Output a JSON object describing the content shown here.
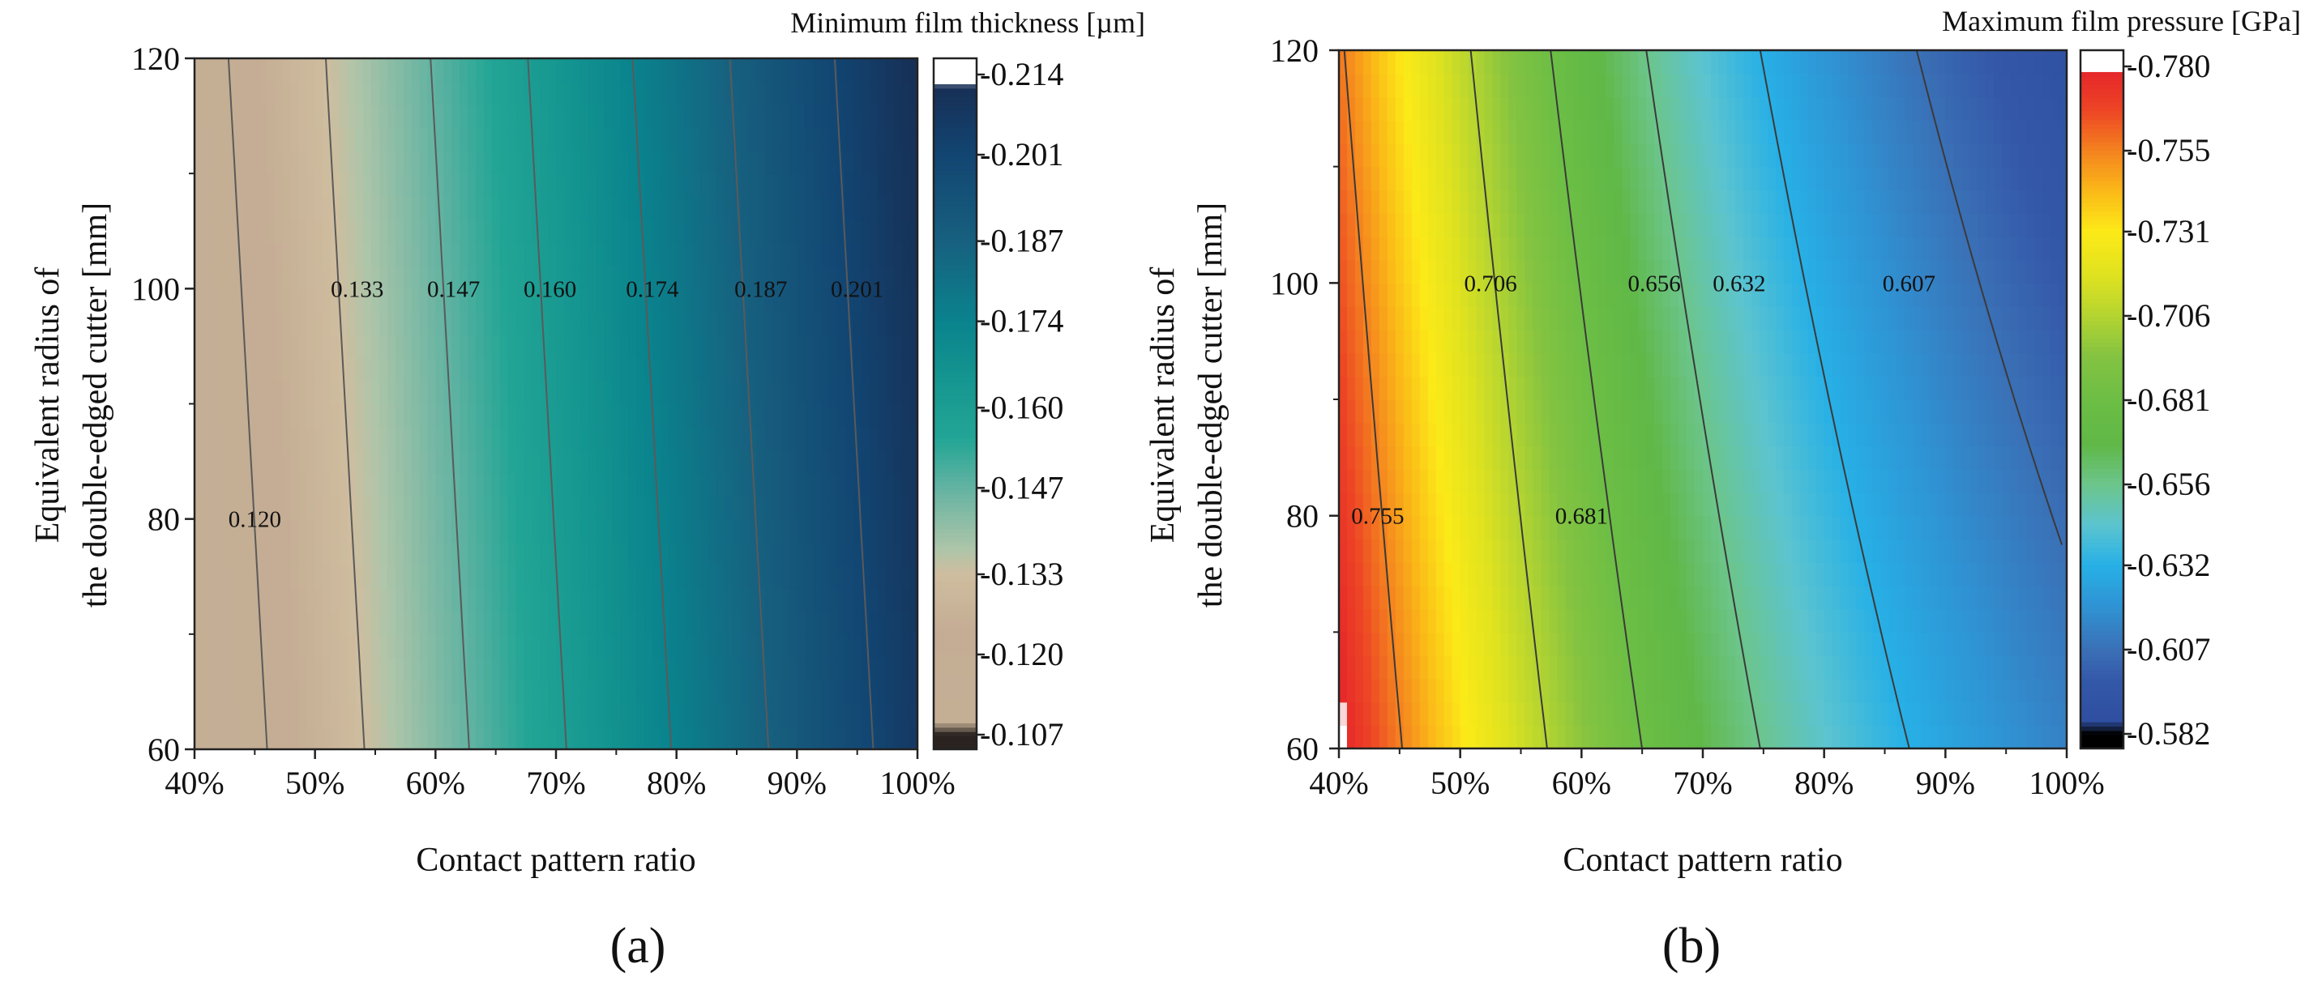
{
  "chart_data": [
    {
      "type": "contour",
      "panel_label": "(a)",
      "xlabel": "Contact pattern ratio",
      "ylabel_lines": [
        "Equivalent radius of",
        "the double-edged cutter [mm]"
      ],
      "colorbar_title": "Minimum film thickness [µm]",
      "xlim": [
        40,
        100
      ],
      "ylim": [
        60,
        120
      ],
      "x_ticks": [
        40,
        50,
        60,
        70,
        80,
        90,
        100
      ],
      "x_tick_labels": [
        "40%",
        "50%",
        "60%",
        "70%",
        "80%",
        "90%",
        "100%"
      ],
      "y_ticks": [
        60,
        80,
        100,
        120
      ],
      "y_tick_labels": [
        "60",
        "80",
        "100",
        "120"
      ],
      "colorbar_range": [
        0.107,
        0.214
      ],
      "colorbar_ticks": [
        0.107,
        0.12,
        0.133,
        0.147,
        0.16,
        0.174,
        0.187,
        0.201,
        0.214
      ],
      "colorbar_tick_labels": [
        "0.107",
        "0.120",
        "0.133",
        "0.147",
        "0.160",
        "0.174",
        "0.187",
        "0.201",
        "0.214"
      ],
      "colormap": [
        [
          0.107,
          "#2a2320"
        ],
        [
          0.109,
          "#c4af95"
        ],
        [
          0.124,
          "#c4ad94"
        ],
        [
          0.133,
          "#cfbd9f"
        ],
        [
          0.137,
          "#aec5a9"
        ],
        [
          0.147,
          "#63b3a2"
        ],
        [
          0.155,
          "#22a595"
        ],
        [
          0.165,
          "#149590"
        ],
        [
          0.174,
          "#0a838d"
        ],
        [
          0.187,
          "#17607f"
        ],
        [
          0.201,
          "#124572"
        ],
        [
          0.212,
          "#172f55"
        ],
        [
          0.2125,
          "#ffffff"
        ],
        [
          0.214,
          "#ffffff"
        ]
      ],
      "field_model": {
        "function": "value = v0 + slope_x * (x - 40) + slope_y * (y - 60)",
        "v0": 0.1103,
        "slope_x": 0.00161,
        "slope_y": 8.6e-05
      },
      "contour_levels": [
        0.12,
        0.133,
        0.147,
        0.16,
        0.174,
        0.187,
        0.201
      ],
      "contour_labels": [
        {
          "text": "0.120",
          "x": 45.0,
          "y": 80
        },
        {
          "text": "0.133",
          "x": 53.5,
          "y": 100
        },
        {
          "text": "0.147",
          "x": 61.5,
          "y": 100
        },
        {
          "text": "0.160",
          "x": 69.5,
          "y": 100
        },
        {
          "text": "0.174",
          "x": 78.0,
          "y": 100
        },
        {
          "text": "0.187",
          "x": 87.0,
          "y": 100
        },
        {
          "text": "0.201",
          "x": 95.0,
          "y": 100
        }
      ]
    },
    {
      "type": "contour",
      "panel_label": "(b)",
      "xlabel": "Contact pattern ratio",
      "ylabel_lines": [
        "Equivalent radius of",
        "the double-edged cutter [mm]"
      ],
      "colorbar_title": "Maximum film pressure [GPa]",
      "xlim": [
        40,
        100
      ],
      "ylim": [
        60,
        120
      ],
      "x_ticks": [
        40,
        50,
        60,
        70,
        80,
        90,
        100
      ],
      "x_tick_labels": [
        "40%",
        "50%",
        "60%",
        "70%",
        "80%",
        "90%",
        "100%"
      ],
      "y_ticks": [
        60,
        80,
        100,
        120
      ],
      "y_tick_labels": [
        "60",
        "80",
        "100",
        "120"
      ],
      "colorbar_range": [
        0.582,
        0.78
      ],
      "colorbar_ticks": [
        0.582,
        0.607,
        0.632,
        0.656,
        0.681,
        0.706,
        0.731,
        0.755,
        0.78
      ],
      "colorbar_tick_labels": [
        "0.582",
        "0.607",
        "0.632",
        "0.656",
        "0.681",
        "0.706",
        "0.731",
        "0.755",
        "0.780"
      ],
      "colormap": [
        [
          0.582,
          "#000000"
        ],
        [
          0.586,
          "#2f4fa1"
        ],
        [
          0.598,
          "#3458a8"
        ],
        [
          0.607,
          "#3a70b6"
        ],
        [
          0.62,
          "#2f94d4"
        ],
        [
          0.632,
          "#27b0e6"
        ],
        [
          0.644,
          "#5cc4cf"
        ],
        [
          0.656,
          "#6cc58b"
        ],
        [
          0.668,
          "#60b846"
        ],
        [
          0.681,
          "#6cbe45"
        ],
        [
          0.694,
          "#84c341"
        ],
        [
          0.706,
          "#b4d431"
        ],
        [
          0.718,
          "#dfe21f"
        ],
        [
          0.731,
          "#fcea18"
        ],
        [
          0.743,
          "#fbb918"
        ],
        [
          0.755,
          "#f4821f"
        ],
        [
          0.767,
          "#ed4525"
        ],
        [
          0.778,
          "#e6282a"
        ],
        [
          0.7785,
          "#ffffff"
        ],
        [
          0.78,
          "#ffffff"
        ]
      ],
      "field_model": {
        "function": "value = v_inf + (v0 - v_inf) * exp(-(x - 40) / k) + slope_y * (y - 60)",
        "v0": 0.7814,
        "v_inf": 0.5653,
        "k": 40.0,
        "slope_y": -0.0004
      },
      "contour_levels": [
        0.607,
        0.632,
        0.656,
        0.681,
        0.706,
        0.755
      ],
      "contour_labels": [
        {
          "text": "0.755",
          "x": 43.2,
          "y": 80
        },
        {
          "text": "0.706",
          "x": 52.5,
          "y": 100
        },
        {
          "text": "0.681",
          "x": 60.0,
          "y": 80
        },
        {
          "text": "0.656",
          "x": 66.0,
          "y": 100
        },
        {
          "text": "0.632",
          "x": 73.0,
          "y": 100
        },
        {
          "text": "0.607",
          "x": 87.0,
          "y": 100
        }
      ]
    }
  ]
}
